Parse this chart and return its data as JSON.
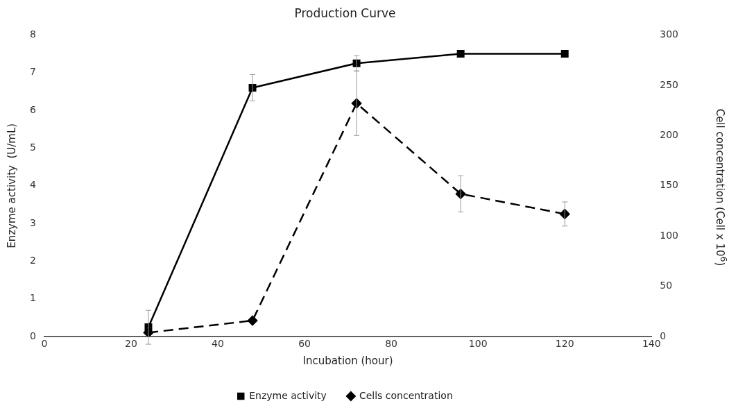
{
  "chart_data": {
    "type": "line",
    "title": "Production Curve",
    "xlabel": "Incubation (hour)",
    "ylabel": "Enzyme activity  (U/mL)",
    "y2label": "Cell concentration (Cell x 10$^{6}$)",
    "x": [
      24,
      48,
      72,
      96,
      120
    ],
    "xlim": [
      0,
      140
    ],
    "xticks": [
      0,
      20,
      40,
      60,
      80,
      100,
      120,
      140
    ],
    "ylim": [
      0,
      8
    ],
    "yticks": [
      0,
      1,
      2,
      3,
      4,
      5,
      6,
      7,
      8
    ],
    "y2lim": [
      0,
      300
    ],
    "y2ticks": [
      0,
      50,
      100,
      150,
      200,
      250,
      300
    ],
    "legend": "bottom",
    "series": [
      {
        "name": "Enzyme activity",
        "color": "#000000",
        "values": [
          0.25,
          6.6,
          7.25,
          7.5,
          7.5
        ],
        "errors": [
          0.45,
          0.35,
          0.2,
          null,
          null
        ],
        "marker": "square",
        "line_style": "solid"
      },
      {
        "name": "Cells concentration",
        "color": "#000000",
        "axis": "y2",
        "values": [
          4,
          16,
          232,
          142,
          122
        ],
        "errors": [
          null,
          null,
          32,
          18,
          12
        ],
        "marker": "diamond",
        "line_style": "dashed"
      }
    ]
  }
}
